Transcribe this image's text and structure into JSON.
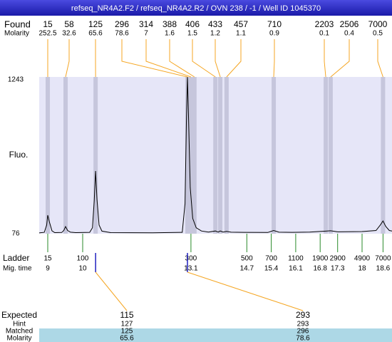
{
  "header": {
    "title": "refseq_NR4A2.F2 / refseq_NR4A2.R2 / OVN 238 / -1 / Well ID 1045370"
  },
  "chart_data": {
    "type": "electropherogram",
    "ylabel": "Fluo.",
    "ylim": [
      76,
      1243
    ],
    "yticks": [
      76,
      1243
    ],
    "xlim": [
      8.755,
      18.857
    ],
    "trace": {
      "color": "#000000",
      "x": [
        8.755,
        8.9,
        8.97,
        9.0,
        9.05,
        9.12,
        9.2,
        9.4,
        9.46,
        9.51,
        9.57,
        9.65,
        9.8,
        10.2,
        10.28,
        10.33,
        10.37,
        10.41,
        10.47,
        10.55,
        10.8,
        12.0,
        12.85,
        12.93,
        12.97,
        13.0,
        13.03,
        13.08,
        13.15,
        13.25,
        13.4,
        13.6,
        13.8,
        13.88,
        13.94,
        14.02,
        14.12,
        14.25,
        14.6,
        15.3,
        15.47,
        15.62,
        16.0,
        16.5,
        16.96,
        17.1,
        17.3,
        18.0,
        18.4,
        18.52,
        18.6,
        18.68,
        18.78,
        18.857
      ],
      "y": [
        82,
        86,
        140,
        214,
        160,
        98,
        84,
        85,
        100,
        129,
        100,
        87,
        84,
        86,
        120,
        320,
        543,
        330,
        140,
        95,
        84,
        83,
        86,
        300,
        900,
        1243,
        950,
        420,
        190,
        120,
        96,
        88,
        96,
        88,
        96,
        88,
        93,
        87,
        86,
        85,
        100,
        87,
        86,
        88,
        95,
        98,
        90,
        92,
        100,
        140,
        171,
        130,
        100,
        96
      ]
    },
    "found": {
      "label": "Found",
      "molarity_label": "Molarity",
      "color": "#f5a623",
      "band_color": "#c6c6dc",
      "sizes": [
        15,
        58,
        125,
        296,
        314,
        388,
        406,
        433,
        457,
        710,
        2203,
        2506,
        7000
      ],
      "molarity": [
        252.5,
        32.6,
        65.6,
        78.6,
        7,
        1.6,
        1.5,
        1.2,
        1.1,
        0.9,
        0.1,
        0.4,
        0.5
      ],
      "times": [
        9.0,
        9.51,
        10.37,
        13.0,
        13.1,
        13.2,
        13.8,
        13.94,
        14.12,
        15.47,
        16.96,
        17.1,
        18.6
      ]
    },
    "ladder": {
      "label": "Ladder",
      "time_label": "Mig. time",
      "color": "#2a8a2a",
      "sizes": [
        15,
        100,
        300,
        500,
        700,
        1100,
        1900,
        2900,
        4900,
        7000
      ],
      "times": [
        9,
        10,
        13.1,
        14.7,
        15.4,
        16.1,
        16.8,
        17.3,
        18,
        18.6
      ]
    },
    "expected": {
      "labels": [
        "Expected",
        "Hint",
        "Matched",
        "Molarity"
      ],
      "marker_color": "#2020c0",
      "expected": [
        115,
        293
      ],
      "hint": [
        127,
        293
      ],
      "matched": [
        125,
        296
      ],
      "molarity": [
        65.6,
        78.6
      ]
    }
  }
}
